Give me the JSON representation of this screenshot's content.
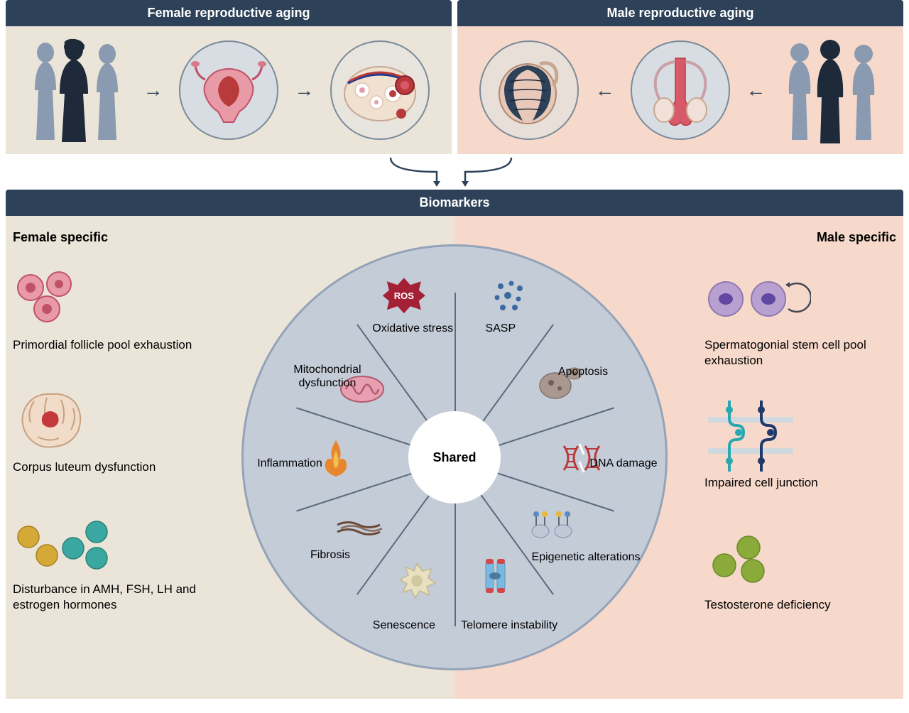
{
  "colors": {
    "header_bg": "#2d4258",
    "header_text": "#ffffff",
    "female_bg": "#eae5d8",
    "male_bg": "#f6d9ca",
    "wheel_bg": "#c4ccd8",
    "wheel_border": "#94a3b8",
    "spoke": "#5a6b7d",
    "arrow": "#2d4258",
    "person_dark": "#1e2a3a",
    "person_light": "#8a9ab0",
    "ros_red": "#a32035",
    "pink_cell": "#e89aa6",
    "pink_cell_stroke": "#c05268",
    "corpus_beige": "#f0dcc8",
    "corpus_red": "#c43a3a",
    "hormone_yellow": "#d4a938",
    "hormone_teal": "#3aa8a0",
    "purple_cell": "#b8a0d0",
    "purple_nucleus": "#6048a0",
    "junction_teal": "#2aa8b0",
    "junction_navy": "#1e3a6a",
    "green_cell": "#8aaa3a",
    "mito_pink": "#e8a0b0",
    "mito_stroke": "#b05a70",
    "flame_orange": "#e8862e",
    "flame_yellow": "#f0c050",
    "fibrosis_brown": "#6a4a3a",
    "senescence_beige": "#e8e0c0",
    "telomere_blue": "#7ab8e0",
    "telomere_red": "#d04848",
    "dna_red": "#b83a3a",
    "apoptosis_gray": "#a89890",
    "sasp_blue": "#3a6aa0",
    "epigenetic_blue": "#5a8ac0",
    "epigenetic_yellow": "#e8b838"
  },
  "top": {
    "female": {
      "title": "Female reproductive aging",
      "organ1_name": "uterus-illustration",
      "organ2_name": "ovary-illustration"
    },
    "male": {
      "title": "Male reproductive aging",
      "organ1_name": "testis-cross-section-illustration",
      "organ2_name": "male-reproductive-system-illustration"
    }
  },
  "biomarkers": {
    "title": "Biomarkers",
    "female_title": "Female specific",
    "male_title": "Male specific",
    "shared_label": "Shared",
    "female_items": [
      {
        "label": "Primordial follicle pool exhaustion",
        "icon": "follicle-cells-icon"
      },
      {
        "label": "Corpus luteum dysfunction",
        "icon": "corpus-luteum-icon"
      },
      {
        "label": "Disturbance in AMH, FSH, LH and estrogen hormones",
        "icon": "hormone-dots-icon"
      }
    ],
    "male_items": [
      {
        "label": "Spermatogonial stem cell pool exhaustion",
        "icon": "stem-cell-icon"
      },
      {
        "label": "Impaired cell junction",
        "icon": "cell-junction-icon"
      },
      {
        "label": "Testosterone deficiency",
        "icon": "green-dots-icon"
      }
    ],
    "wheel": {
      "num_wedges": 10,
      "items": [
        {
          "label": "SASP",
          "icon": "sasp-dots-icon",
          "angle_deg": 18,
          "radius_label": 200,
          "radius_icon": 240
        },
        {
          "label": "Apoptosis",
          "icon": "apoptosis-cell-icon",
          "angle_deg": 54,
          "radius_label": 220,
          "radius_icon": 180
        },
        {
          "label": "DNA damage",
          "icon": "dna-damage-icon",
          "angle_deg": 90,
          "radius_label": 235,
          "radius_icon": 175
        },
        {
          "label": "Epigenetic alterations",
          "icon": "epigenetic-icon",
          "angle_deg": 126,
          "radius_label": 225,
          "radius_icon": 165
        },
        {
          "label": "Telomere instability",
          "icon": "telomere-icon",
          "angle_deg": 162,
          "radius_label": 240,
          "radius_icon": 175
        },
        {
          "label": "Senescence",
          "icon": "senescence-cell-icon",
          "angle_deg": 198,
          "radius_label": 240,
          "radius_icon": 180
        },
        {
          "label": "Fibrosis",
          "icon": "fibrosis-icon",
          "angle_deg": 234,
          "radius_label": 220,
          "radius_icon": 170
        },
        {
          "label": "Inflammation",
          "icon": "flame-icon",
          "angle_deg": 270,
          "radius_label": 235,
          "radius_icon": 170
        },
        {
          "label": "Mitochondrial dysfunction",
          "icon": "mitochondria-icon",
          "angle_deg": 306,
          "radius_label": 225,
          "radius_icon": 165
        },
        {
          "label": "Oxidative stress",
          "icon": "ros-icon",
          "angle_deg": 342,
          "radius_label": 200,
          "radius_icon": 240,
          "badge_text": "ROS"
        }
      ]
    }
  }
}
